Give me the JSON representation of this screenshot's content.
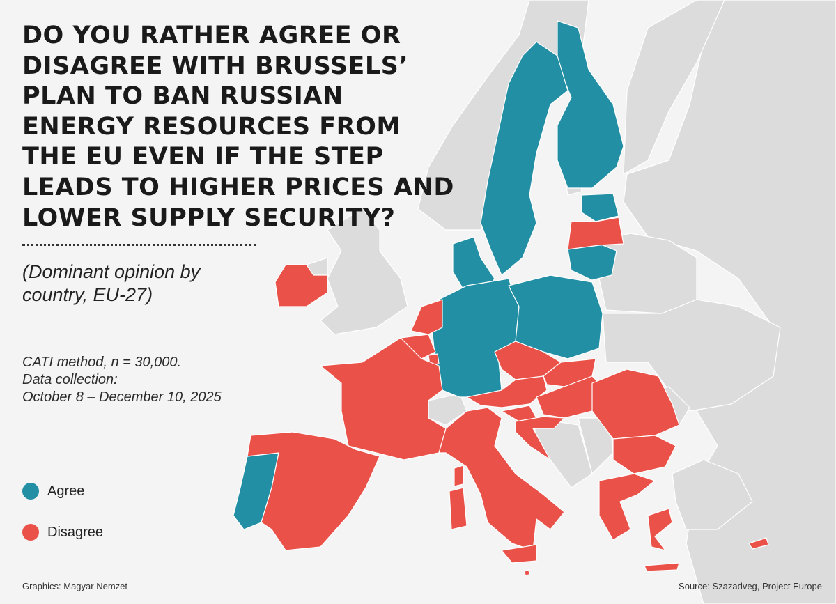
{
  "title": "DO YOU RATHER AGREE OR DISAGREE WITH BRUSSELS’ PLAN TO BAN RUSSIAN ENERGY RESOURCES FROM THE EU EVEN IF THE STEP LEADS TO HIGHER PRICES AND LOWER SUPPLY SECURITY?",
  "subtitle": "(Dominant opinion by country, EU-27)",
  "method": {
    "line1": "CATI method, n = 30,000.",
    "line2": "Data collection:",
    "line3": "October 8 – December 10, 2025"
  },
  "legend": [
    {
      "label": "Agree",
      "color": "#228fa4"
    },
    {
      "label": "Disagree",
      "color": "#ea5148"
    }
  ],
  "colors": {
    "agree": "#228fa4",
    "disagree": "#ea5148",
    "non_eu": "#dcdcdc",
    "background": "#f4f4f4"
  },
  "countries": {
    "agree": [
      "Finland",
      "Sweden",
      "Denmark",
      "Estonia",
      "Lithuania",
      "Germany",
      "Poland",
      "Portugal"
    ],
    "disagree": [
      "Latvia",
      "Ireland",
      "Netherlands",
      "Belgium",
      "Luxembourg",
      "France",
      "Spain",
      "Italy",
      "Malta",
      "Czechia",
      "Slovakia",
      "Austria",
      "Hungary",
      "Slovenia",
      "Croatia",
      "Romania",
      "Bulgaria",
      "Greece",
      "Cyprus"
    ]
  },
  "credits": {
    "graphics": "Graphics: Magyar Nemzet",
    "source": "Source: Szazadveg, Project Europe"
  }
}
